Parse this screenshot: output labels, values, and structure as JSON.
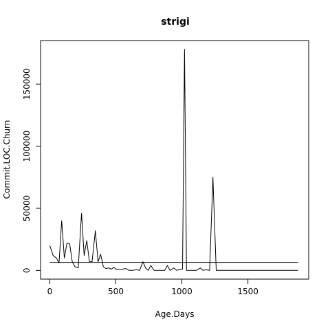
{
  "chart_data": {
    "type": "line",
    "title": "strigi",
    "xlabel": "Age.Days",
    "ylabel": "Commit.LOC.Churn",
    "xlim": [
      -70,
      1960
    ],
    "ylim": [
      -7000,
      185000
    ],
    "xticks": [
      0,
      500,
      1000,
      1500
    ],
    "yticks": [
      0,
      50000,
      100000,
      150000
    ],
    "x_tick_labels": [
      "0",
      "500",
      "1000",
      "1500"
    ],
    "y_tick_labels": [
      "0",
      "50000",
      "100000",
      "150000"
    ],
    "grid": false,
    "legend": "none",
    "series": [
      {
        "x": [
          0,
          25,
          50,
          70,
          90,
          110,
          130,
          150,
          170,
          190,
          215,
          240,
          260,
          280,
          300,
          320,
          345,
          365,
          385,
          405,
          425,
          445,
          465,
          485,
          505,
          525,
          550,
          575,
          600,
          625,
          655,
          680,
          705,
          725,
          745,
          765,
          790,
          810,
          840,
          870,
          890,
          910,
          940,
          960,
          985,
          1005,
          1020,
          1035,
          1055,
          1080,
          1110,
          1140,
          1160,
          1185,
          1210,
          1235,
          1260,
          1290,
          1880
        ],
        "values": [
          20000,
          12000,
          10000,
          6000,
          40000,
          10000,
          22000,
          21500,
          7000,
          3000,
          2000,
          46000,
          12000,
          24000,
          7000,
          7000,
          32000,
          7000,
          13000,
          3000,
          1500,
          2000,
          1000,
          2500,
          500,
          500,
          1000,
          1500,
          0,
          0,
          500,
          0,
          7000,
          2000,
          0,
          4000,
          0,
          0,
          0,
          0,
          4000,
          0,
          2000,
          0,
          1000,
          1000,
          178000,
          0,
          0,
          0,
          0,
          2000,
          0,
          500,
          0,
          75000,
          0,
          0,
          0
        ]
      },
      {
        "x": [
          0,
          1880
        ],
        "values": [
          6500,
          6500
        ]
      }
    ]
  }
}
